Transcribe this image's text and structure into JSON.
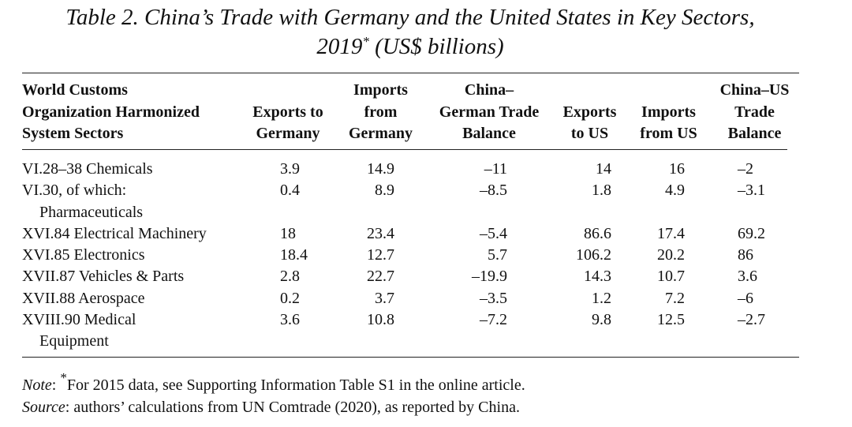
{
  "title": {
    "line1": "Table 2.  China’s Trade with Germany and the United States in Key Sectors,",
    "year": "2019",
    "mark": "*",
    "unit": "(US$ billions)"
  },
  "table": {
    "columns": [
      [
        "World Customs",
        "Organization Harmonized",
        "System Sectors"
      ],
      [
        "Exports to",
        "Germany"
      ],
      [
        "Imports",
        "from",
        "Germany"
      ],
      [
        "China–",
        "German Trade",
        "Balance"
      ],
      [
        "Exports",
        "to US"
      ],
      [
        "Imports",
        "from US"
      ],
      [
        "China–US",
        "Trade",
        "Balance"
      ]
    ],
    "rows": [
      [
        [
          "VI.28–38 Chemicals"
        ],
        "3.9",
        "14.9",
        "–11",
        "14",
        "16",
        "–2"
      ],
      [
        [
          "VI.30, of which:",
          "Pharmaceuticals"
        ],
        "0.4",
        "8.9",
        "–8.5",
        "1.8",
        "4.9",
        "–3.1"
      ],
      [
        [
          "XVI.84 Electrical Machinery"
        ],
        "18",
        "23.4",
        "–5.4",
        "86.6",
        "17.4",
        "69.2"
      ],
      [
        [
          "XVI.85 Electronics"
        ],
        "18.4",
        "12.7",
        "5.7",
        "106.2",
        "20.2",
        "86"
      ],
      [
        [
          "XVII.87 Vehicles & Parts"
        ],
        "2.8",
        "22.7",
        "–19.9",
        "14.3",
        "10.7",
        "3.6"
      ],
      [
        [
          "XVII.88 Aerospace"
        ],
        "0.2",
        "3.7",
        "–3.5",
        "1.2",
        "7.2",
        "–6"
      ],
      [
        [
          "XVIII.90 Medical",
          "Equipment"
        ],
        "3.6",
        "10.8",
        "–7.2",
        "9.8",
        "12.5",
        "–2.7"
      ]
    ]
  },
  "note": {
    "label": "Note",
    "colon": ":",
    "mark": "*",
    "text": "For 2015 data, see Supporting Information Table S1 in the online article."
  },
  "source": {
    "label": "Source",
    "colon": ":",
    "text": "authors’ calculations from UN Comtrade (2020), as reported by China."
  }
}
